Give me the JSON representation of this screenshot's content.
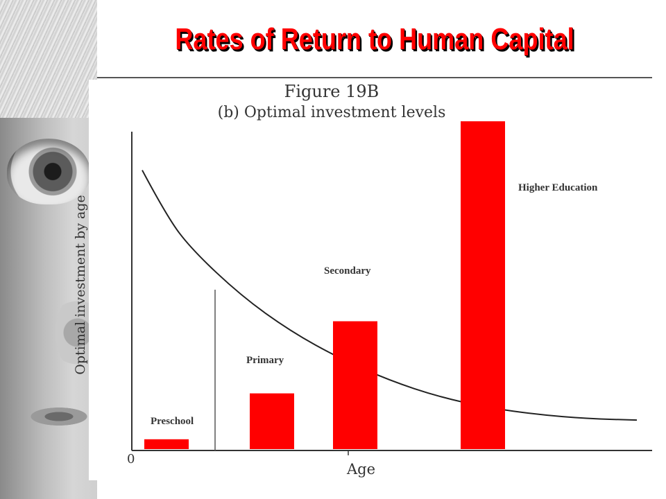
{
  "slide": {
    "title": "Rates of Return to Human Capital"
  },
  "chart_data": {
    "type": "bar",
    "figure_title": "Figure 19B",
    "subtitle": "(b) Optimal investment levels",
    "xlabel": "Age",
    "ylabel": "Optimal investment by age",
    "x_origin_label": "0",
    "ylim": [
      0,
      100
    ],
    "categories": [
      "Preschool",
      "Primary",
      "Secondary",
      "Higher Education"
    ],
    "values": [
      3,
      17,
      39,
      100
    ],
    "curve": {
      "type": "line",
      "description_free": true,
      "points_x": [
        0,
        5,
        10,
        20,
        30,
        40,
        50,
        60,
        70,
        80,
        90,
        100
      ],
      "points_y": [
        93,
        76,
        64,
        47,
        34,
        24,
        16,
        10,
        6,
        3.5,
        2,
        1.5
      ]
    },
    "accent_color": "#ff0000"
  }
}
